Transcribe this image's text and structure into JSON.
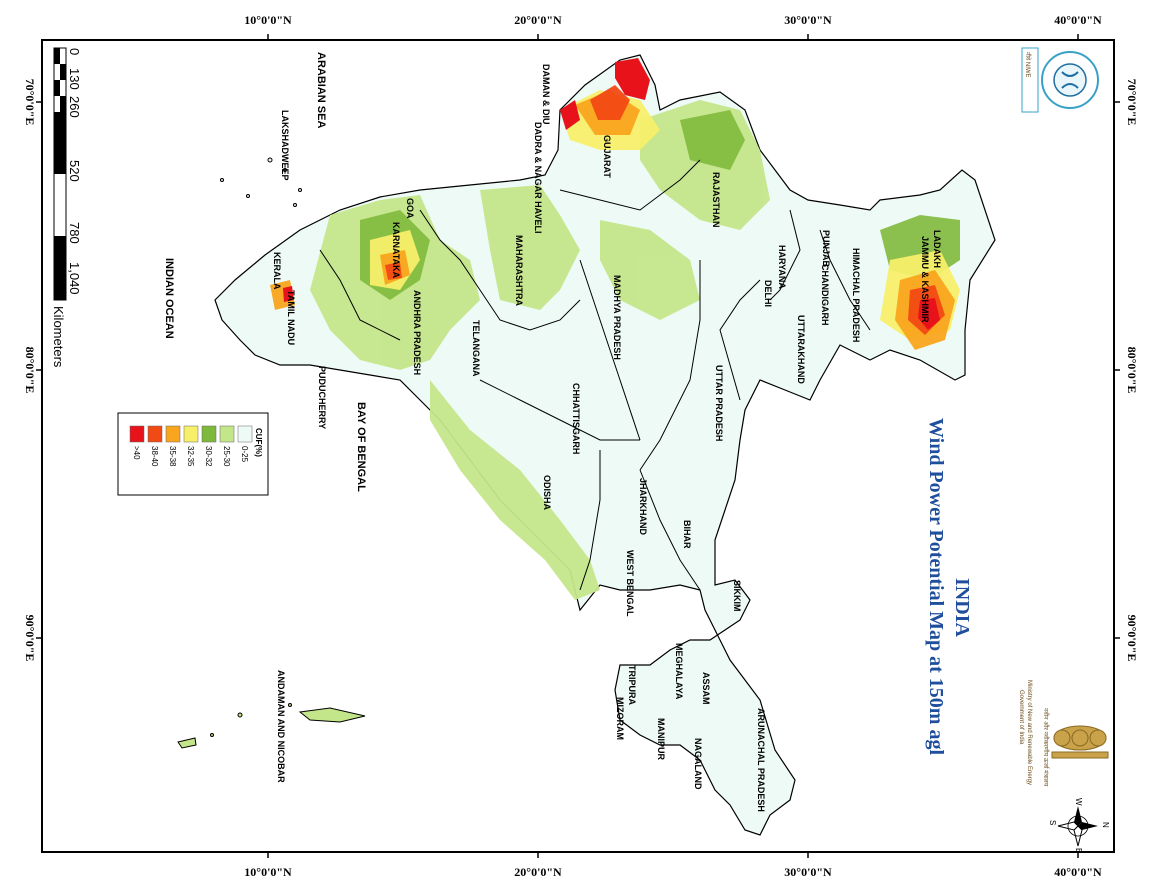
{
  "title": {
    "line1": "INDIA",
    "line2": "Wind Power Potential Map at 150m agl"
  },
  "graticule": {
    "top_labels": [
      "10°0'0\"N",
      "20°0'0\"N",
      "30°0'0\"N",
      "40°0'0\"N"
    ],
    "bottom_labels": [
      "10°0'0\"N",
      "20°0'0\"N",
      "30°0'0\"N",
      "40°0'0\"N"
    ],
    "left_labels": [
      "70°0'0\"E",
      "80°0'0\"E",
      "90°0'0\"E"
    ],
    "right_labels": [
      "70°0'0\"E",
      "80°0'0\"E",
      "90°0'0\"E"
    ]
  },
  "seas": {
    "arabian_sea": "ARABIAN SEA",
    "indian_ocean": "INDIAN OCEAN",
    "bay_of_bengal": "BAY OF BENGAL"
  },
  "states": [
    "LAKSHADWEEP",
    "DAMAN & DIU",
    "DADRA & NAGAR HAVELI",
    "GUJARAT",
    "RAJASTHAN",
    "MAHARASHTRA",
    "GOA",
    "KARNATAKA",
    "KERALA",
    "TAMIL NADU",
    "ANDHRA PRADESH",
    "TELANGANA",
    "PUDUCHERRY",
    "MADHYA PRADESH",
    "CHHATTISGARH",
    "ODISHA",
    "JHARKHAND",
    "WEST BENGAL",
    "BIHAR",
    "UTTAR PRADESH",
    "DELHI",
    "HARYANA",
    "PUNJAB",
    "CHANDIGARH",
    "HIMACHAL PRADESH",
    "UTTARAKHAND",
    "JAMMU & KASHMIR",
    "LADAKH",
    "SIKKIM",
    "MEGHALAYA",
    "ASSAM",
    "TRIPURA",
    "MIZORAM",
    "MANIPUR",
    "NAGALAND",
    "ARUNACHAL PRADESH",
    "ANDAMAN AND NICOBAR"
  ],
  "legend": {
    "title": "CUF(%)",
    "classes": [
      {
        "label": ">40",
        "color": "#e8121b"
      },
      {
        "label": "38-40",
        "color": "#f24a14"
      },
      {
        "label": "35-38",
        "color": "#f9a51e"
      },
      {
        "label": "32-35",
        "color": "#f7ef6a"
      },
      {
        "label": "30-32",
        "color": "#7fb93c"
      },
      {
        "label": "25-30",
        "color": "#c4e68a"
      },
      {
        "label": "0-25",
        "color": "#eefaf6"
      }
    ]
  },
  "scale_bar": {
    "ticks": [
      "0",
      "130",
      "260",
      "520",
      "780",
      "1,040"
    ],
    "unit": "Kilometers"
  },
  "logos": {
    "niwe_text": "नीवे NIWE",
    "ministry_line1": "Ministry of New and Renewable Energy",
    "ministry_line2": "Government of India"
  },
  "compass": {
    "n": "N",
    "s": "S",
    "e": "E",
    "w": "W"
  }
}
